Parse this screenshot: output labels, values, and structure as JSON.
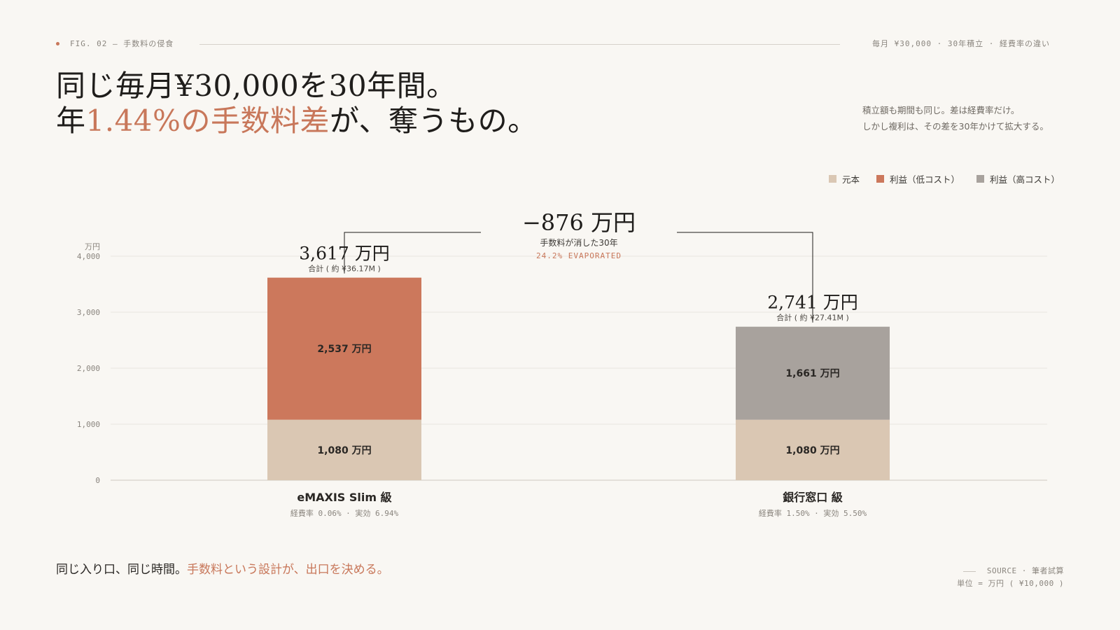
{
  "header": {
    "fig_label": "FIG. 02 — 手数料の侵食",
    "meta": "毎月 ¥30,000 · 30年積立 · 経費率の違い"
  },
  "headline": {
    "line1": "同じ毎月¥30,000を30年間。",
    "line2_prefix": "年",
    "line2_accent": "1.44%の手数料差",
    "line2_suffix": "が、奪うもの。"
  },
  "subnote": {
    "line1": "積立額も期間も同じ。差は経費率だけ。",
    "line2": "しかし複利は、その差を30年かけて拡大する。"
  },
  "legend": [
    {
      "label": "元本",
      "color": "#dac7b3"
    },
    {
      "label": "利益（低コスト）",
      "color": "#cc785c"
    },
    {
      "label": "利益（高コスト）",
      "color": "#a8a29d"
    }
  ],
  "chart_data": {
    "type": "bar",
    "stacked": true,
    "ylabel": "万円",
    "ylim": [
      0,
      4000
    ],
    "yticks": [
      0,
      1000,
      2000,
      3000,
      4000
    ],
    "ytick_labels": [
      "0",
      "1,000",
      "2,000",
      "3,000",
      "4,000"
    ],
    "grid": true,
    "categories": [
      "eMAXIS Slim 級",
      "銀行窓口 級"
    ],
    "category_notes": [
      "経費率 0.06% · 実効 6.94%",
      "経費率 1.50% · 実効 5.50%"
    ],
    "series": [
      {
        "name": "元本",
        "values": [
          1080,
          1080
        ],
        "color": "#dac7b3",
        "labels": [
          "1,080 万円",
          "1,080 万円"
        ]
      },
      {
        "name": "利益（低コスト）",
        "values": [
          2537,
          0
        ],
        "color": "#cc785c",
        "labels": [
          "2,537 万円",
          ""
        ]
      },
      {
        "name": "利益（高コスト）",
        "values": [
          0,
          1661
        ],
        "color": "#a8a29d",
        "labels": [
          "",
          "1,661 万円"
        ]
      }
    ],
    "totals": [
      3617,
      2741
    ],
    "total_labels": [
      "3,617 万円",
      "2,741 万円"
    ],
    "total_notes": [
      "合計 ( 約 ¥36.17M )",
      "合計 ( 約 ¥27.41M )"
    ],
    "difference": {
      "label": "−876 万円",
      "note": "手数料が消した30年",
      "pct": "24.2% EVAPORATED"
    }
  },
  "footer": {
    "tagline_plain": "同じ入り口、同じ時間。",
    "tagline_accent": "手数料という設計が、出口を決める。",
    "source": "SOURCE · 筆者試算",
    "unit": "単位 = 万円 ( ¥10,000 )"
  }
}
